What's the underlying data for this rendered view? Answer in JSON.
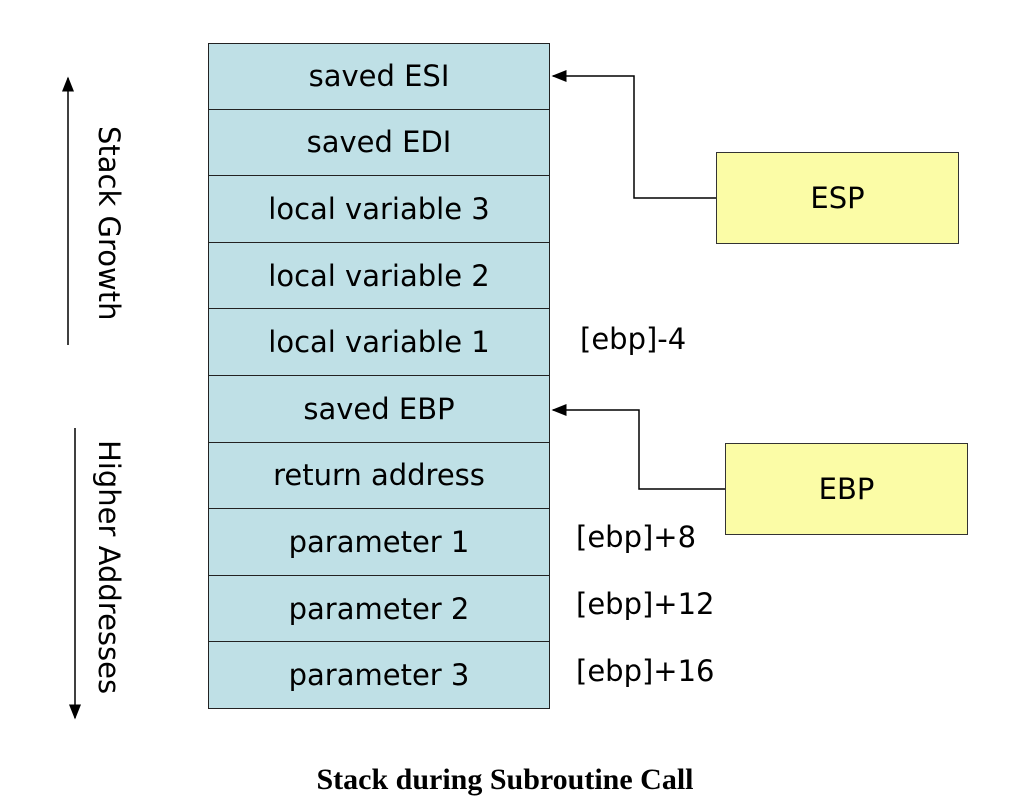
{
  "stack": [
    "saved ESI",
    "saved EDI",
    "local variable 3",
    "local variable 2",
    "local variable 1",
    "saved EBP",
    "return address",
    "parameter 1",
    "parameter 2",
    "parameter 3"
  ],
  "offsets": {
    "local1": "[ebp]-4",
    "param1": "[ebp]+8",
    "param2": "[ebp]+12",
    "param3": "[ebp]+16"
  },
  "registers": {
    "esp": "ESP",
    "ebp": "EBP"
  },
  "labels": {
    "stack_growth": "Stack Growth",
    "higher_addresses": "Higher Addresses"
  },
  "caption": "Stack during Subroutine Call"
}
